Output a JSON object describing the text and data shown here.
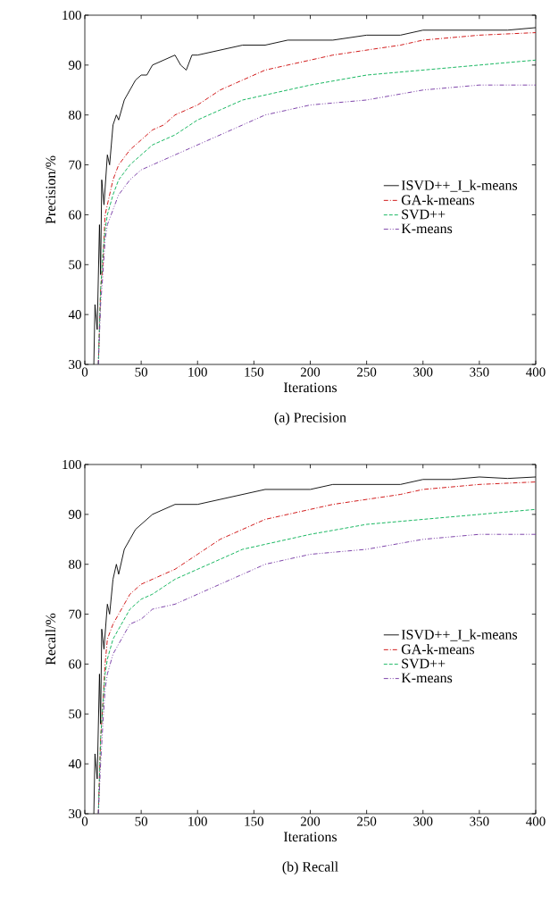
{
  "chart_data": [
    {
      "type": "line",
      "title": "(a) Precision",
      "xlabel": "Iterations",
      "ylabel": "Precision/%",
      "xlim": [
        0,
        400
      ],
      "ylim": [
        30,
        100
      ],
      "xticks": [
        0,
        50,
        100,
        150,
        200,
        250,
        300,
        350,
        400
      ],
      "yticks": [
        30,
        40,
        50,
        60,
        70,
        80,
        90,
        100
      ],
      "legend": "right",
      "grid": false,
      "series": [
        {
          "name": "ISVD++_I_k-means",
          "color": "#000000",
          "line_style": "solid",
          "x": [
            8,
            9,
            11,
            13,
            14,
            15,
            17,
            20,
            22,
            25,
            28,
            30,
            35,
            40,
            45,
            50,
            55,
            60,
            70,
            80,
            85,
            90,
            95,
            100,
            120,
            140,
            160,
            180,
            200,
            220,
            250,
            280,
            300,
            325,
            350,
            375,
            400
          ],
          "values": [
            30,
            42,
            37,
            58,
            48,
            67,
            62,
            72,
            70,
            78,
            80,
            79,
            83,
            85,
            87,
            88,
            88,
            90,
            91,
            92,
            90,
            89,
            92,
            92,
            93,
            94,
            94,
            95,
            95,
            95,
            96,
            96,
            97,
            97,
            97,
            97,
            97.5
          ]
        },
        {
          "name": "GA-k-means",
          "color": "#cc0000",
          "line_style": "dashdot",
          "x": [
            12,
            14,
            16,
            18,
            20,
            25,
            30,
            40,
            50,
            60,
            70,
            80,
            100,
            120,
            140,
            160,
            180,
            200,
            220,
            250,
            280,
            300,
            350,
            400
          ],
          "values": [
            30,
            45,
            50,
            60,
            62,
            67,
            70,
            73,
            75,
            77,
            78,
            80,
            82,
            85,
            87,
            89,
            90,
            91,
            92,
            93,
            94,
            95,
            96,
            96.5
          ]
        },
        {
          "name": "SVD++",
          "color": "#00b050",
          "line_style": "dashed",
          "x": [
            12,
            14,
            16,
            18,
            20,
            25,
            30,
            40,
            50,
            60,
            80,
            100,
            120,
            140,
            160,
            180,
            200,
            250,
            300,
            350,
            400
          ],
          "values": [
            30,
            45,
            52,
            57,
            60,
            64,
            67,
            70,
            72,
            74,
            76,
            79,
            81,
            83,
            84,
            85,
            86,
            88,
            89,
            90,
            91
          ]
        },
        {
          "name": "K-means",
          "color": "#7030a0",
          "line_style": "dashdotdot",
          "x": [
            12,
            14,
            16,
            18,
            20,
            25,
            30,
            40,
            50,
            60,
            80,
            100,
            120,
            140,
            160,
            180,
            200,
            250,
            300,
            350,
            400
          ],
          "values": [
            30,
            42,
            48,
            55,
            58,
            61,
            64,
            67,
            69,
            70,
            72,
            74,
            76,
            78,
            80,
            81,
            82,
            83,
            85,
            86,
            86
          ]
        }
      ]
    },
    {
      "type": "line",
      "title": "(b) Recall",
      "xlabel": "Iterations",
      "ylabel": "Recall/%",
      "xlim": [
        0,
        400
      ],
      "ylim": [
        30,
        100
      ],
      "xticks": [
        0,
        50,
        100,
        150,
        200,
        250,
        300,
        350,
        400
      ],
      "yticks": [
        30,
        40,
        50,
        60,
        70,
        80,
        90,
        100
      ],
      "legend": "right",
      "grid": false,
      "series": [
        {
          "name": "ISVD++_I_k-means",
          "color": "#000000",
          "line_style": "solid",
          "x": [
            8,
            9,
            11,
            13,
            14,
            15,
            17,
            20,
            22,
            25,
            28,
            30,
            35,
            40,
            45,
            50,
            55,
            60,
            70,
            80,
            90,
            100,
            120,
            140,
            160,
            180,
            200,
            220,
            250,
            280,
            300,
            325,
            350,
            375,
            400
          ],
          "values": [
            30,
            42,
            37,
            58,
            48,
            67,
            63,
            72,
            70,
            77,
            80,
            78,
            83,
            85,
            87,
            88,
            89,
            90,
            91,
            92,
            92,
            92,
            93,
            94,
            95,
            95,
            95,
            96,
            96,
            96,
            97,
            97,
            97.5,
            97.2,
            97.5
          ]
        },
        {
          "name": "GA-k-means",
          "color": "#cc0000",
          "line_style": "dashdot",
          "x": [
            12,
            14,
            16,
            18,
            20,
            25,
            30,
            40,
            50,
            60,
            70,
            80,
            100,
            120,
            140,
            160,
            180,
            200,
            220,
            250,
            280,
            300,
            350,
            400
          ],
          "values": [
            30,
            45,
            52,
            60,
            65,
            68,
            70,
            74,
            76,
            77,
            78,
            79,
            82,
            85,
            87,
            89,
            90,
            91,
            92,
            93,
            94,
            95,
            96,
            96.5
          ]
        },
        {
          "name": "SVD++",
          "color": "#00b050",
          "line_style": "dashed",
          "x": [
            12,
            14,
            16,
            18,
            20,
            25,
            30,
            40,
            50,
            60,
            80,
            100,
            120,
            140,
            160,
            180,
            200,
            250,
            300,
            350,
            400
          ],
          "values": [
            30,
            45,
            52,
            58,
            61,
            65,
            67,
            71,
            73,
            74,
            77,
            79,
            81,
            83,
            84,
            85,
            86,
            88,
            89,
            90,
            91
          ]
        },
        {
          "name": "K-means",
          "color": "#7030a0",
          "line_style": "dashdotdot",
          "x": [
            12,
            14,
            16,
            18,
            20,
            25,
            30,
            40,
            50,
            60,
            80,
            100,
            120,
            140,
            160,
            180,
            200,
            250,
            300,
            350,
            400
          ],
          "values": [
            30,
            40,
            48,
            55,
            58,
            62,
            64,
            68,
            69,
            71,
            72,
            74,
            76,
            78,
            80,
            81,
            82,
            83,
            85,
            86,
            86
          ]
        }
      ]
    }
  ]
}
